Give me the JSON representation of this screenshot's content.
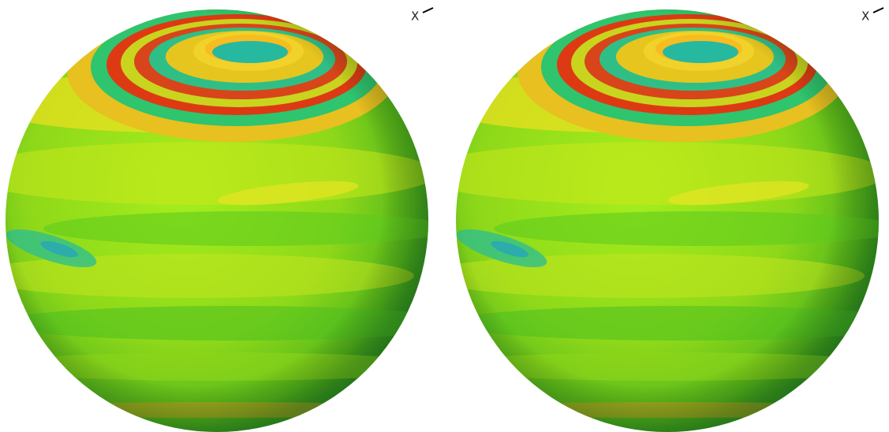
{
  "panels": [
    {
      "axis_label": "X"
    },
    {
      "axis_label": "X"
    }
  ]
}
